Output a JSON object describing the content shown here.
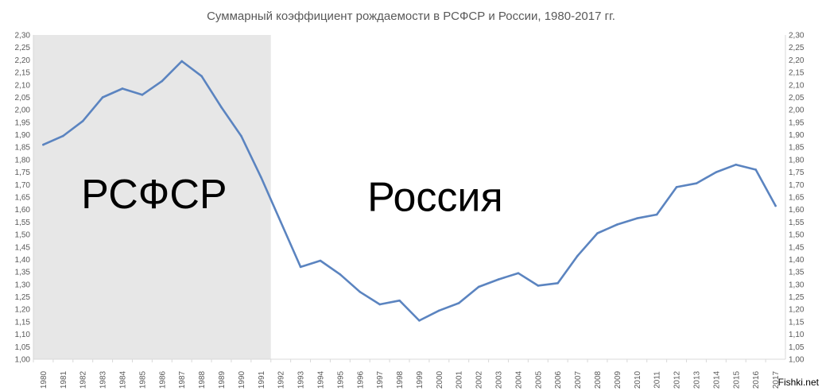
{
  "chart_data": {
    "type": "line",
    "title": "Суммарный коэффициент рождаемости в РСФСР и России, 1980-2017 гг.",
    "xlabel": "",
    "ylabel": "",
    "ylim": [
      1.0,
      2.3
    ],
    "ytick_step": 0.05,
    "grid": false,
    "secondary_y_axis": true,
    "x": [
      "1980",
      "1981",
      "1982",
      "1983",
      "1984",
      "1985",
      "1986",
      "1987",
      "1988",
      "1989",
      "1990",
      "1991",
      "1992",
      "1993",
      "1994",
      "1995",
      "1996",
      "1997",
      "1998",
      "1999",
      "2000",
      "2001",
      "2002",
      "2003",
      "2004",
      "2005",
      "2006",
      "2007",
      "2008",
      "2009",
      "2010",
      "2011",
      "2012",
      "2013",
      "2014",
      "2015",
      "2016",
      "2017"
    ],
    "series": [
      {
        "name": "",
        "color": "#5b84c0",
        "values": [
          1.86,
          1.895,
          1.955,
          2.05,
          2.085,
          2.06,
          2.115,
          2.195,
          2.135,
          2.01,
          1.895,
          1.73,
          1.55,
          1.37,
          1.395,
          1.34,
          1.27,
          1.22,
          1.235,
          1.155,
          1.195,
          1.225,
          1.29,
          1.32,
          1.345,
          1.295,
          1.305,
          1.415,
          1.505,
          1.54,
          1.565,
          1.58,
          1.69,
          1.705,
          1.75,
          1.78,
          1.76,
          1.615
        ]
      }
    ],
    "regions": [
      {
        "label": "РСФСР",
        "from": "1980",
        "to": "1991",
        "shade": "#e7e7e7"
      },
      {
        "label": "Россия",
        "from": "1992",
        "to": "2017",
        "shade": ""
      }
    ]
  },
  "watermark": "Fishki.net"
}
